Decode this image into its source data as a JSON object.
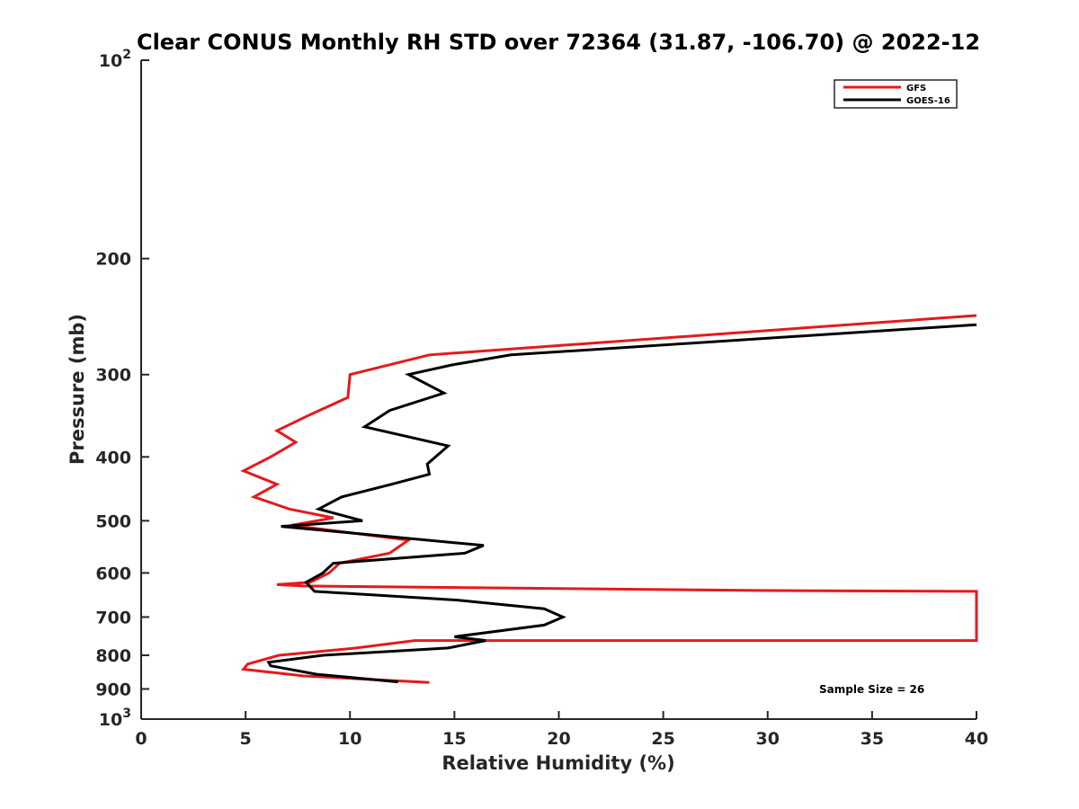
{
  "chart_data": {
    "type": "line",
    "title": "Clear CONUS Monthly RH STD over 72364 (31.87, -106.70) @ 2022-12",
    "xlabel": "Relative Humidity (%)",
    "ylabel": "Pressure (mb)",
    "xlim": [
      0,
      40
    ],
    "ylim": [
      100,
      1000
    ],
    "yscale": "log",
    "yreversed": true,
    "x_ticks": [
      "0",
      "5",
      "10",
      "15",
      "20",
      "25",
      "30",
      "35",
      "40"
    ],
    "y_ticks": [
      {
        "value": 100,
        "label": "10",
        "sup": "2"
      },
      {
        "value": 200,
        "label": "200",
        "sup": ""
      },
      {
        "value": 300,
        "label": "300",
        "sup": ""
      },
      {
        "value": 400,
        "label": "400",
        "sup": ""
      },
      {
        "value": 500,
        "label": "500",
        "sup": ""
      },
      {
        "value": 600,
        "label": "600",
        "sup": ""
      },
      {
        "value": 700,
        "label": "700",
        "sup": ""
      },
      {
        "value": 800,
        "label": "800",
        "sup": ""
      },
      {
        "value": 900,
        "label": "900",
        "sup": ""
      },
      {
        "value": 1000,
        "label": "10",
        "sup": "3"
      }
    ],
    "legend": {
      "position": "top-right"
    },
    "annotation": "Sample Size = 26",
    "series": [
      {
        "name": "GFS",
        "color": "#e41a1c",
        "points": [
          [
            40,
            244
          ],
          [
            13.8,
            280
          ],
          [
            10,
            300
          ],
          [
            9.9,
            325
          ],
          [
            8.1,
            345
          ],
          [
            6.5,
            365
          ],
          [
            7.4,
            380
          ],
          [
            6.2,
            400
          ],
          [
            4.9,
            420
          ],
          [
            6.5,
            440
          ],
          [
            5.4,
            460
          ],
          [
            7.1,
            480
          ],
          [
            9.2,
            495
          ],
          [
            7.2,
            508
          ],
          [
            12.8,
            535
          ],
          [
            11.9,
            560
          ],
          [
            9.5,
            580
          ],
          [
            9,
            600
          ],
          [
            8.1,
            620
          ],
          [
            6.5,
            625
          ],
          [
            7.8,
            628
          ],
          [
            29.5,
            638
          ],
          [
            40,
            640
          ],
          [
            40,
            760
          ],
          [
            13.1,
            760
          ],
          [
            10.3,
            780
          ],
          [
            6.6,
            800
          ],
          [
            5.1,
            825
          ],
          [
            4.9,
            840
          ],
          [
            7.8,
            860
          ],
          [
            13.8,
            880
          ]
        ]
      },
      {
        "name": "GOES-16",
        "color": "#000000",
        "points": [
          [
            40,
            252
          ],
          [
            17.7,
            280
          ],
          [
            14.9,
            290
          ],
          [
            12.8,
            300
          ],
          [
            14.5,
            320
          ],
          [
            11.9,
            340
          ],
          [
            10.7,
            360
          ],
          [
            14.7,
            385
          ],
          [
            13.7,
            410
          ],
          [
            13.8,
            425
          ],
          [
            12,
            440
          ],
          [
            9.6,
            460
          ],
          [
            8.5,
            480
          ],
          [
            10.6,
            500
          ],
          [
            6.7,
            510
          ],
          [
            16.4,
            545
          ],
          [
            15.5,
            560
          ],
          [
            9.2,
            580
          ],
          [
            8.7,
            600
          ],
          [
            7.9,
            620
          ],
          [
            8.3,
            640
          ],
          [
            15.2,
            660
          ],
          [
            19.3,
            680
          ],
          [
            20.2,
            700
          ],
          [
            19.3,
            720
          ],
          [
            15,
            750
          ],
          [
            16.5,
            760
          ],
          [
            14.7,
            780
          ],
          [
            8.7,
            800
          ],
          [
            6.1,
            820
          ],
          [
            6.2,
            830
          ],
          [
            8.4,
            855
          ],
          [
            12.3,
            878
          ]
        ]
      }
    ]
  }
}
